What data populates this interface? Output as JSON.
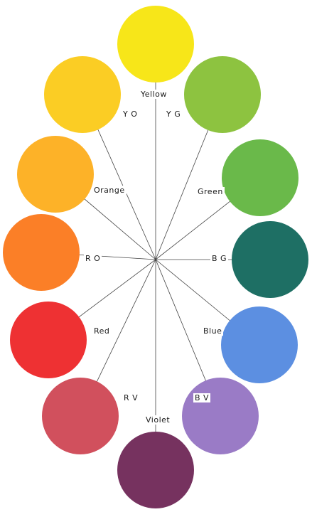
{
  "colors": [
    {
      "key": "yellow",
      "label": "Yellow",
      "hex": "#f7e619"
    },
    {
      "key": "yo",
      "label": "Y O",
      "hex": "#fbcd24"
    },
    {
      "key": "orange",
      "label": "Orange",
      "hex": "#fdb228"
    },
    {
      "key": "ro",
      "label": "R O",
      "hex": "#fb7f27"
    },
    {
      "key": "red",
      "label": "Red",
      "hex": "#ee3133"
    },
    {
      "key": "rv",
      "label": "R V",
      "hex": "#d1505d"
    },
    {
      "key": "violet",
      "label": "Violet",
      "hex": "#76325f"
    },
    {
      "key": "bv",
      "label": "B V",
      "hex": "#9a7bc6"
    },
    {
      "key": "blue",
      "label": "Blue",
      "hex": "#5c8fe1"
    },
    {
      "key": "bg",
      "label": "B G",
      "hex": "#1e6f64"
    },
    {
      "key": "green",
      "label": "Green",
      "hex": "#6ab94a"
    },
    {
      "key": "yg",
      "label": "Y G",
      "hex": "#8dc340"
    }
  ],
  "line_color": "#444444"
}
